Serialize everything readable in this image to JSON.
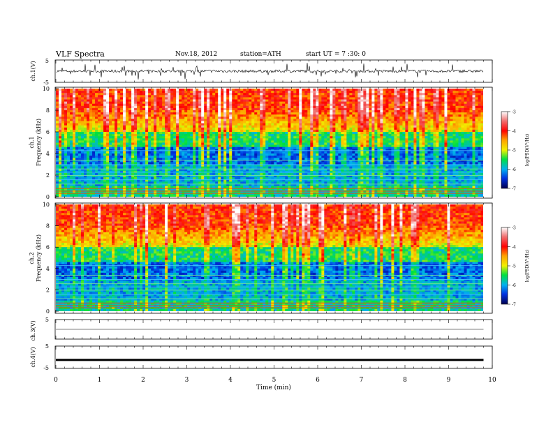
{
  "header": {
    "title": "VLF  Spectra",
    "date": "Nov.18, 2012",
    "station": "station=ATH",
    "start": "start  UT  =   7  :30: 0"
  },
  "chart_data": [
    {
      "type": "line",
      "panel": "ch1-waveform",
      "ylabel": "ch.1(V)",
      "ylim": [
        -5,
        5
      ],
      "yticks": [
        "5",
        "-5"
      ],
      "xlim": [
        0,
        9.8
      ],
      "series_color": "#000000"
    },
    {
      "type": "heatmap",
      "panel": "ch1-spectrogram",
      "ylabel_channel": "ch.1",
      "ylabel": "Frequency  (kHz)",
      "ylim": [
        0,
        10
      ],
      "yticks": [
        "0",
        "2",
        "4",
        "6",
        "8",
        "10"
      ],
      "xlim": [
        0,
        9.8
      ],
      "colorbar": {
        "label": "log(PSD(V²/Hz)",
        "range": [
          -7,
          -3
        ],
        "ticks": [
          "-3",
          "-4",
          "-5",
          "-6",
          "-7"
        ]
      }
    },
    {
      "type": "heatmap",
      "panel": "ch2-spectrogram",
      "ylabel_channel": "ch.2",
      "ylabel": "Frequency  (kHz)",
      "ylim": [
        0,
        10
      ],
      "yticks": [
        "0",
        "2",
        "4",
        "6",
        "8",
        "10"
      ],
      "xlim": [
        0,
        9.8
      ],
      "colorbar": {
        "label": "log(PSD(V²/Hz)",
        "range": [
          -7,
          -3
        ],
        "ticks": [
          "-3",
          "-4",
          "-5",
          "-6",
          "-7"
        ]
      }
    },
    {
      "type": "line",
      "panel": "ch3-waveform",
      "ylabel": "ch.3(V)",
      "ylim": [
        -5,
        5
      ],
      "yticks": [
        "5"
      ],
      "xlim": [
        0,
        9.8
      ],
      "level": 0
    },
    {
      "type": "line",
      "panel": "ch4-waveform",
      "ylabel": "ch.4(V)",
      "ylim": [
        -5,
        5
      ],
      "yticks": [
        "5",
        "-5"
      ],
      "xlim": [
        0,
        9.8
      ],
      "level": -1.2
    }
  ],
  "xaxis": {
    "label": "Time  (min)",
    "range": [
      0,
      10
    ],
    "ticks": [
      "0",
      "1",
      "2",
      "3",
      "4",
      "5",
      "6",
      "7",
      "8",
      "9",
      "10"
    ]
  }
}
